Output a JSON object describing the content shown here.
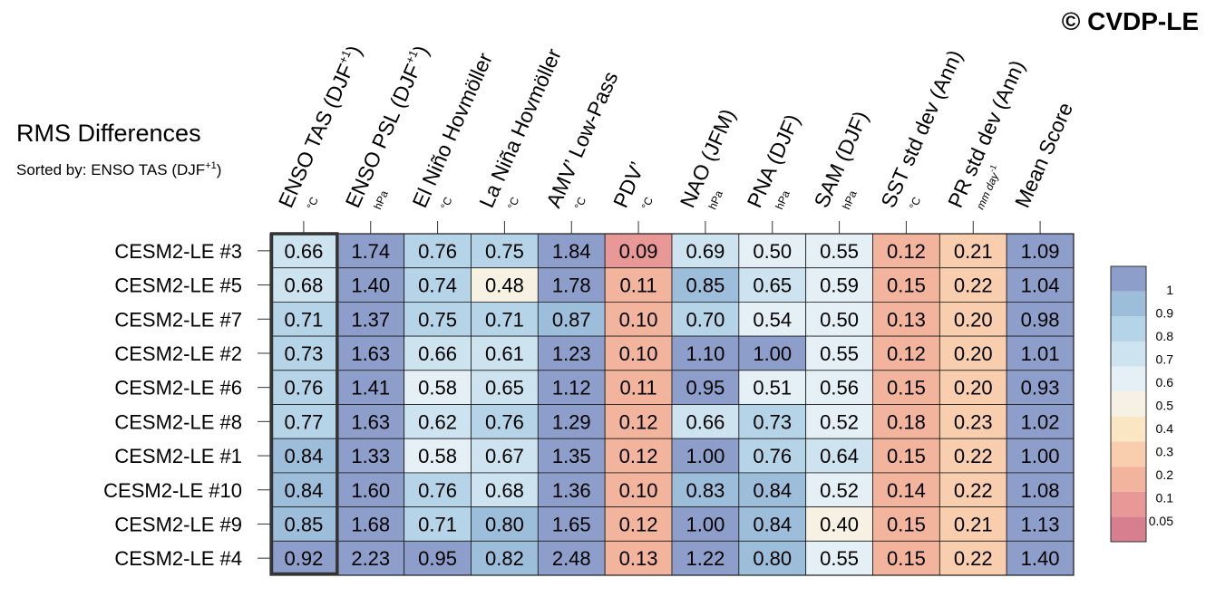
{
  "watermark": "© CVDP-LE",
  "chart_data": {
    "type": "heatmap",
    "title": "RMS Differences",
    "subtitle": {
      "text": "Sorted by: ENSO TAS (DJF",
      "sup": "+1",
      "end": ")"
    },
    "columns": [
      {
        "name": "ENSO TAS (DJF",
        "sup": "+1",
        "end": ")",
        "unit": "°C"
      },
      {
        "name": "ENSO PSL (DJF",
        "sup": "+1",
        "end": ")",
        "unit": "hPa"
      },
      {
        "name": "El Niño Hovmöller",
        "sup": "",
        "end": "",
        "unit": "°C"
      },
      {
        "name": "La Niña Hovmöller",
        "sup": "",
        "end": "",
        "unit": "°C"
      },
      {
        "name": "AMV’ Low-Pass",
        "sup": "",
        "end": "",
        "unit": "°C"
      },
      {
        "name": "PDV’",
        "sup": "",
        "end": "",
        "unit": "°C"
      },
      {
        "name": "NAO (JFM)",
        "sup": "",
        "end": "",
        "unit": "hPa"
      },
      {
        "name": "PNA (DJF)",
        "sup": "",
        "end": "",
        "unit": "hPa"
      },
      {
        "name": "SAM (DJF)",
        "sup": "",
        "end": "",
        "unit": "hPa"
      },
      {
        "name": "SST std dev (Ann)",
        "sup": "",
        "end": "",
        "unit": "°C"
      },
      {
        "name": "PR std dev (Ann)",
        "sup": "",
        "end": "",
        "unit": "mm day",
        "unit_sup": "-1"
      },
      {
        "name": "Mean Score",
        "sup": "",
        "end": "",
        "unit": ""
      }
    ],
    "rows": [
      "CESM2-LE #3",
      "CESM2-LE #5",
      "CESM2-LE #7",
      "CESM2-LE #2",
      "CESM2-LE #6",
      "CESM2-LE #8",
      "CESM2-LE #1",
      "CESM2-LE #10",
      "CESM2-LE #9",
      "CESM2-LE #4"
    ],
    "values": [
      [
        0.66,
        1.74,
        0.76,
        0.75,
        1.84,
        0.09,
        0.69,
        0.5,
        0.55,
        0.12,
        0.21,
        1.09
      ],
      [
        0.68,
        1.4,
        0.74,
        0.48,
        1.78,
        0.11,
        0.85,
        0.65,
        0.59,
        0.15,
        0.22,
        1.04
      ],
      [
        0.71,
        1.37,
        0.75,
        0.71,
        0.87,
        0.1,
        0.7,
        0.54,
        0.5,
        0.13,
        0.2,
        0.98
      ],
      [
        0.73,
        1.63,
        0.66,
        0.61,
        1.23,
        0.1,
        1.1,
        1.0,
        0.55,
        0.12,
        0.2,
        1.01
      ],
      [
        0.76,
        1.41,
        0.58,
        0.65,
        1.12,
        0.11,
        0.95,
        0.51,
        0.56,
        0.15,
        0.2,
        0.93
      ],
      [
        0.77,
        1.63,
        0.62,
        0.76,
        1.29,
        0.12,
        0.66,
        0.73,
        0.52,
        0.18,
        0.23,
        1.02
      ],
      [
        0.84,
        1.33,
        0.58,
        0.67,
        1.35,
        0.12,
        1.0,
        0.76,
        0.64,
        0.15,
        0.22,
        1.0
      ],
      [
        0.84,
        1.6,
        0.76,
        0.68,
        1.36,
        0.1,
        0.83,
        0.84,
        0.52,
        0.14,
        0.22,
        1.08
      ],
      [
        0.85,
        1.68,
        0.71,
        0.8,
        1.65,
        0.12,
        1.0,
        0.84,
        0.4,
        0.15,
        0.21,
        1.13
      ],
      [
        0.92,
        2.23,
        0.95,
        0.82,
        2.48,
        0.13,
        1.22,
        0.8,
        0.55,
        0.15,
        0.22,
        1.4
      ]
    ],
    "highlight_column": 0,
    "colorbar": {
      "levels": [
        0.05,
        0.1,
        0.2,
        0.3,
        0.4,
        0.5,
        0.6,
        0.7,
        0.8,
        0.9,
        1
      ],
      "labels": [
        "1",
        "0.9",
        "0.8",
        "0.7",
        "0.6",
        "0.5",
        "0.4",
        "0.3",
        "0.2",
        "0.1",
        "0.05"
      ],
      "colors": [
        "#d87f8f",
        "#e99898",
        "#f2b49c",
        "#f8ceaf",
        "#fbe6c4",
        "#f6f1e2",
        "#e5f0f6",
        "#cde3ef",
        "#b6d4e8",
        "#9dbedb",
        "#8c9ec9"
      ]
    }
  }
}
